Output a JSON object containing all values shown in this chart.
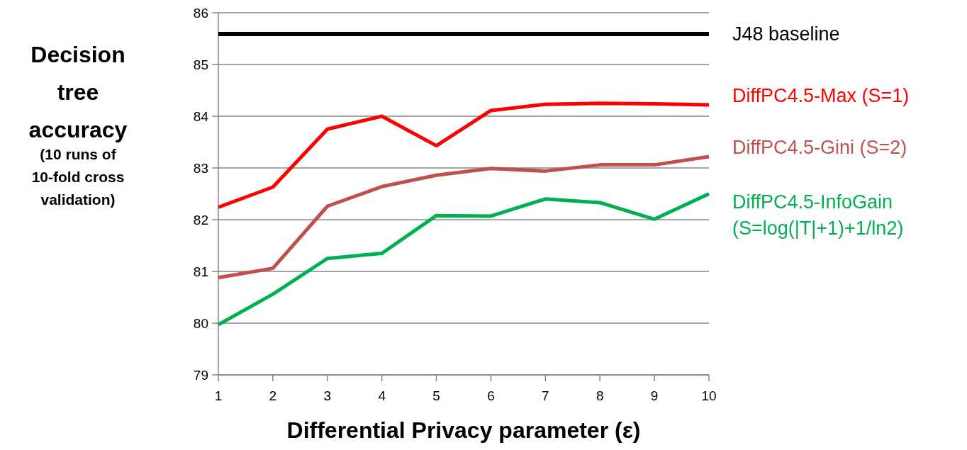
{
  "chart_data": {
    "type": "line",
    "xlabel": "Differential Privacy parameter (ε)",
    "ylabel": "Decision tree accuracy",
    "annotations": [
      "(10 runs of 10-fold cross validation)"
    ],
    "x": [
      1,
      2,
      3,
      4,
      5,
      6,
      7,
      8,
      9,
      10
    ],
    "series": [
      {
        "name": "DiffPC4.5-Max (S=1)",
        "color": "#ff0000",
        "values": [
          82.24,
          82.63,
          83.75,
          84.0,
          83.43,
          84.11,
          84.23,
          84.25,
          84.24,
          84.22
        ]
      },
      {
        "name": "DiffPC4.5-Gini (S=2)",
        "color": "#c0504d",
        "values": [
          80.88,
          81.06,
          82.26,
          82.64,
          82.86,
          82.99,
          82.94,
          83.06,
          83.06,
          83.22
        ]
      },
      {
        "name": "DiffPC4.5-InfoGain (S=log(|T|+1)+1/ln2)",
        "color": "#00b050",
        "values": [
          79.97,
          80.56,
          81.25,
          81.35,
          82.08,
          82.07,
          82.4,
          82.33,
          82.01,
          82.5
        ]
      }
    ],
    "ref_lines": [
      {
        "axis": "y",
        "value": 85.59,
        "label": "J48 baseline",
        "color": "#000000"
      }
    ],
    "xlim": [
      1,
      10
    ],
    "xticks": [
      1,
      2,
      3,
      4,
      5,
      6,
      7,
      8,
      9,
      10
    ],
    "ylim": [
      79,
      86
    ],
    "yticks": [
      79,
      80,
      81,
      82,
      83,
      84,
      85,
      86
    ],
    "grid": "y",
    "legend": false,
    "marker": "none",
    "line_style": "solid"
  }
}
